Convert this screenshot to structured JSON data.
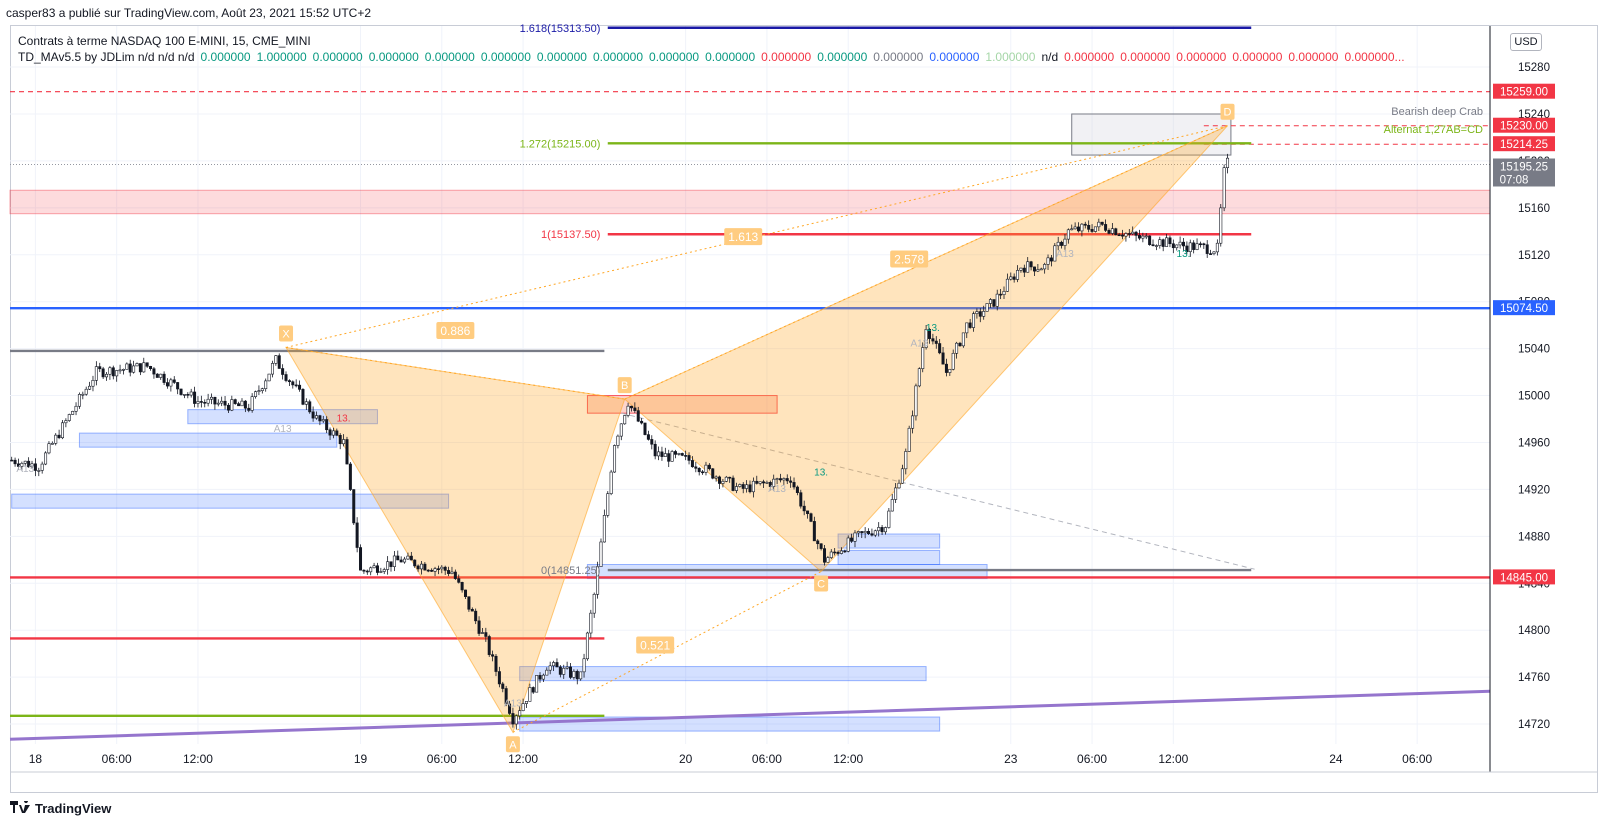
{
  "header": {
    "text": "casper83 a  publié sur TradingView.com, Août 23, 2021 15:52 UTC+2"
  },
  "info": {
    "symbol_line": "Contrats à terme NASDAQ 100 E-MINI, 15, CME_MINI",
    "indicator_name": "TD_MAv5.5 by JDLim  n/d  n/d  n/d",
    "indicator_values": [
      {
        "text": "0.000000",
        "color": "#089981"
      },
      {
        "text": "1.000000",
        "color": "#089981"
      },
      {
        "text": "0.000000",
        "color": "#089981"
      },
      {
        "text": "0.000000",
        "color": "#089981"
      },
      {
        "text": "0.000000",
        "color": "#089981"
      },
      {
        "text": "0.000000",
        "color": "#089981"
      },
      {
        "text": "0.000000",
        "color": "#089981"
      },
      {
        "text": "0.000000",
        "color": "#089981"
      },
      {
        "text": "0.000000",
        "color": "#089981"
      },
      {
        "text": "0.000000",
        "color": "#089981"
      },
      {
        "text": "0.000000",
        "color": "#f23645"
      },
      {
        "text": "0.000000",
        "color": "#089981"
      },
      {
        "text": "0.000000",
        "color": "#787b86"
      },
      {
        "text": "0.000000",
        "color": "#2962ff"
      },
      {
        "text": "1.000000",
        "color": "#a5d6a7"
      },
      {
        "text": "n/d",
        "color": "#131722"
      },
      {
        "text": "0.000000",
        "color": "#f23645"
      },
      {
        "text": "0.000000",
        "color": "#f23645"
      },
      {
        "text": "0.000000",
        "color": "#f23645"
      },
      {
        "text": "0.000000",
        "color": "#f23645"
      },
      {
        "text": "0.000000",
        "color": "#f23645"
      },
      {
        "text": "0.000000...",
        "color": "#f23645"
      }
    ]
  },
  "currency_button": "USD",
  "footer": {
    "brand": "TradingView",
    "logo_icon": "tradingview-logo-icon"
  },
  "chart_data": {
    "type": "candlestick",
    "symbol": "NQ1! 15m",
    "y_axis": {
      "ticks": [
        15280,
        15240,
        15200,
        15160,
        15120,
        15080,
        15040,
        15000,
        14960,
        14920,
        14880,
        14840,
        14800,
        14760,
        14720
      ],
      "ylim": [
        14703,
        15315
      ]
    },
    "x_axis": {
      "labels": [
        {
          "label": "18",
          "bar": 7
        },
        {
          "label": "06:00",
          "bar": 31
        },
        {
          "label": "12:00",
          "bar": 55
        },
        {
          "label": "19",
          "bar": 103
        },
        {
          "label": "06:00",
          "bar": 127
        },
        {
          "label": "12:00",
          "bar": 151
        },
        {
          "label": "20",
          "bar": 199
        },
        {
          "label": "06:00",
          "bar": 223
        },
        {
          "label": "12:00",
          "bar": 247
        },
        {
          "label": "23",
          "bar": 295
        },
        {
          "label": "06:00",
          "bar": 319
        },
        {
          "label": "12:00",
          "bar": 343
        },
        {
          "label": "24",
          "bar": 391
        },
        {
          "label": "06:00",
          "bar": 415
        }
      ],
      "bar_count": 437
    },
    "price_labels": [
      {
        "price": 15259.0,
        "text": "15259.00",
        "color": "#f23645"
      },
      {
        "price": 15230.0,
        "text": "15230.00",
        "color": "#f23645"
      },
      {
        "price": 15214.25,
        "text": "15214.25",
        "color": "#f23645"
      },
      {
        "price": 15195.25,
        "text": "15195.25",
        "sub": "07:08",
        "color": "#787b86"
      },
      {
        "price": 15074.5,
        "text": "15074.50",
        "color": "#2962ff"
      },
      {
        "price": 14845.0,
        "text": "14845.00",
        "color": "#f23645"
      }
    ],
    "path_points": [
      {
        "price": 14945,
        "bar": 0
      },
      {
        "price": 14940,
        "bar": 8
      },
      {
        "price": 15020,
        "bar": 25
      },
      {
        "price": 15025,
        "bar": 40
      },
      {
        "price": 14995,
        "bar": 55
      },
      {
        "price": 14990,
        "bar": 70
      },
      {
        "price": 15030,
        "bar": 78
      },
      {
        "price": 14980,
        "bar": 90
      },
      {
        "price": 14960,
        "bar": 98
      },
      {
        "price": 14850,
        "bar": 103
      },
      {
        "price": 14860,
        "bar": 115
      },
      {
        "price": 14850,
        "bar": 130
      },
      {
        "price": 14790,
        "bar": 140
      },
      {
        "price": 14725,
        "bar": 148
      },
      {
        "price": 14770,
        "bar": 158
      },
      {
        "price": 14760,
        "bar": 168
      },
      {
        "price": 14830,
        "bar": 172
      },
      {
        "price": 14960,
        "bar": 178
      },
      {
        "price": 14995,
        "bar": 182
      },
      {
        "price": 14950,
        "bar": 190
      },
      {
        "price": 14945,
        "bar": 200
      },
      {
        "price": 14920,
        "bar": 215
      },
      {
        "price": 14930,
        "bar": 230
      },
      {
        "price": 14860,
        "bar": 240
      },
      {
        "price": 14880,
        "bar": 250
      },
      {
        "price": 14890,
        "bar": 258
      },
      {
        "price": 14950,
        "bar": 264
      },
      {
        "price": 15060,
        "bar": 270
      },
      {
        "price": 15020,
        "bar": 276
      },
      {
        "price": 15060,
        "bar": 282
      },
      {
        "price": 15080,
        "bar": 290
      },
      {
        "price": 15110,
        "bar": 298
      },
      {
        "price": 15110,
        "bar": 305
      },
      {
        "price": 15140,
        "bar": 312
      },
      {
        "price": 15145,
        "bar": 322
      },
      {
        "price": 15135,
        "bar": 332
      },
      {
        "price": 15128,
        "bar": 345
      },
      {
        "price": 15125,
        "bar": 356
      },
      {
        "price": 15190,
        "bar": 358
      },
      {
        "price": 15198,
        "bar": 359
      }
    ],
    "harmonic_points": [
      {
        "label": "X",
        "price": 15041,
        "bar": 81
      },
      {
        "label": "A",
        "price": 14713,
        "bar": 148
      },
      {
        "label": "B",
        "price": 14997,
        "bar": 181
      },
      {
        "label": "C",
        "price": 14850,
        "bar": 239
      },
      {
        "label": "D",
        "price": 15230,
        "bar": 359
      }
    ],
    "ratio_labels": [
      {
        "text": "0.886",
        "price": 15055,
        "bar": 131
      },
      {
        "text": "0.521",
        "price": 14787,
        "bar": 190
      },
      {
        "text": "1.613",
        "price": 15135,
        "bar": 216
      },
      {
        "text": "2.578",
        "price": 15116,
        "bar": 265
      }
    ],
    "fib_levels": [
      {
        "text": "1.618(15313.50)",
        "price": 15313.5,
        "color": "#1a1aa6"
      },
      {
        "text": "1.272(15215.00)",
        "price": 15215.0,
        "color": "#7cb518"
      },
      {
        "text": "1(15137.50)",
        "price": 15137.5,
        "color": "#f23645"
      },
      {
        "text": "0(14851.25)",
        "price": 14851.25,
        "color": "#787b86"
      }
    ],
    "pattern_labels": [
      {
        "text": "Bearish deep Crab",
        "color": "#787b86"
      },
      {
        "text": "Alternat 1,27AB=CD",
        "color": "#7cb518"
      }
    ],
    "horizontal_lines": [
      {
        "price": 15259,
        "color": "#f23645",
        "style": "dashed"
      },
      {
        "price": 15074.5,
        "color": "#2962ff",
        "style": "solid"
      },
      {
        "price": 14845,
        "color": "#f23645",
        "style": "solid"
      },
      {
        "price": 14793,
        "color": "#f23645",
        "style": "solid"
      },
      {
        "price": 14727,
        "color": "#7cb518",
        "style": "solid"
      },
      {
        "price": 15038,
        "color": "#787b86",
        "style": "solid"
      }
    ],
    "td_labels": [
      "A13",
      "A13",
      "A13",
      "A13",
      "A13",
      "A13",
      "13.",
      "13.",
      "13.",
      "13."
    ]
  }
}
